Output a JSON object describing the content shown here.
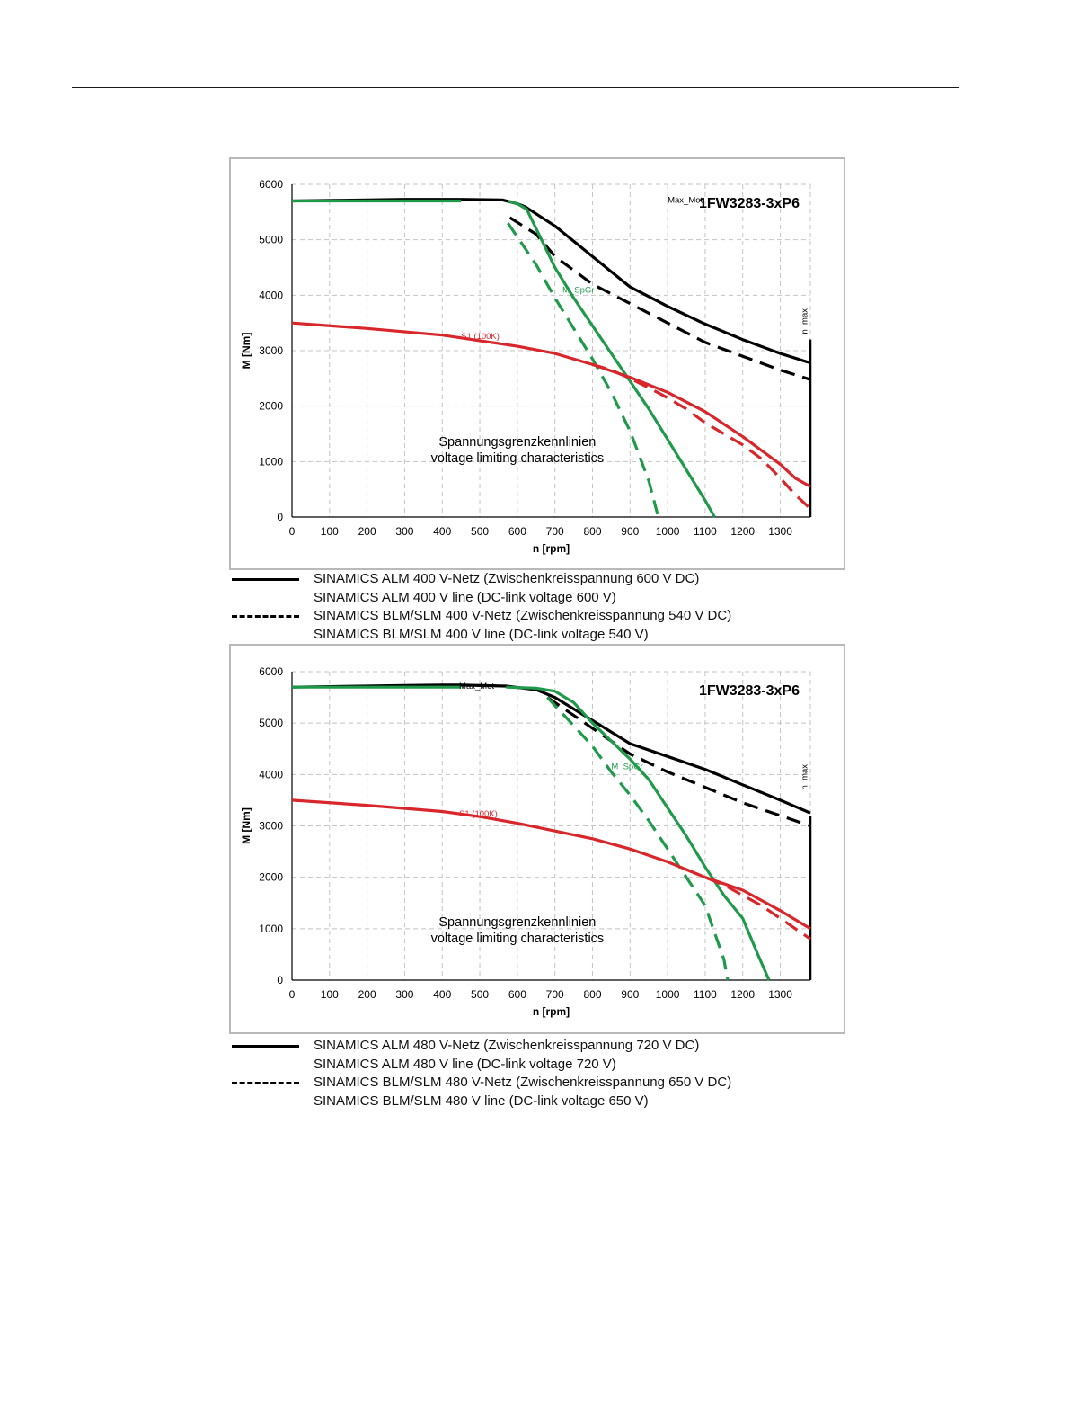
{
  "chart_data": [
    {
      "type": "line",
      "title": "1FW3283-3xP6",
      "xlabel": "n [rpm]",
      "ylabel": "M [Nm]",
      "xlim": [
        0,
        1380
      ],
      "ylim": [
        0,
        6000
      ],
      "xticks": [
        0,
        100,
        200,
        300,
        400,
        500,
        600,
        700,
        800,
        900,
        1000,
        1100,
        1200,
        1300
      ],
      "yticks": [
        0,
        1000,
        2000,
        3000,
        4000,
        5000,
        6000
      ],
      "grid": true,
      "labels": {
        "max_mot": "Max_Mot",
        "m_spgr": "M_SpGr",
        "s1": "S1 (100K)",
        "n_max": "n_max",
        "annotation_line1": "Spannungsgrenzkennlinien",
        "annotation_line2": "voltage limiting characteristics"
      },
      "colors": {
        "black": "#000000",
        "green": "#1f9a4a",
        "red": "#d8262b",
        "grid": "#c4c4c4"
      },
      "series": [
        {
          "id": "max_mot_alm",
          "color": "black",
          "dash": false,
          "x": [
            0,
            100,
            200,
            300,
            400,
            450,
            560,
            600,
            620,
            700,
            800,
            900,
            1000,
            1100,
            1200,
            1300,
            1380
          ],
          "y": [
            5700,
            5710,
            5720,
            5730,
            5730,
            5730,
            5720,
            5650,
            5600,
            5250,
            4700,
            4150,
            3800,
            3480,
            3200,
            2950,
            2780
          ]
        },
        {
          "id": "max_mot_blm",
          "color": "black",
          "dash": true,
          "x": [
            580,
            650,
            700,
            800,
            900,
            1000,
            1100,
            1200,
            1300,
            1380
          ],
          "y": [
            5400,
            5100,
            4700,
            4200,
            3850,
            3500,
            3150,
            2900,
            2650,
            2480
          ]
        },
        {
          "id": "m_spgr_plateau",
          "color": "green",
          "dash": false,
          "x": [
            0,
            100,
            200,
            300,
            400,
            450
          ],
          "y": [
            5700,
            5700,
            5700,
            5700,
            5700,
            5700
          ]
        },
        {
          "id": "m_spgr_alm",
          "color": "green",
          "dash": false,
          "x": [
            575,
            600,
            625,
            650,
            700,
            750,
            800,
            850,
            900,
            950,
            1000,
            1050,
            1100,
            1125
          ],
          "y": [
            5700,
            5650,
            5550,
            5200,
            4500,
            3950,
            3450,
            2950,
            2450,
            1950,
            1400,
            850,
            300,
            0
          ]
        },
        {
          "id": "m_spgr_blm",
          "color": "green",
          "dash": true,
          "x": [
            575,
            600,
            650,
            700,
            750,
            800,
            850,
            900,
            950,
            975
          ],
          "y": [
            5300,
            5050,
            4550,
            3950,
            3400,
            2850,
            2250,
            1550,
            650,
            0
          ]
        },
        {
          "id": "s1_alm",
          "color": "red",
          "dash": false,
          "x": [
            0,
            200,
            400,
            500,
            600,
            700,
            800,
            900,
            1000,
            1100,
            1200,
            1300,
            1340,
            1380
          ],
          "y": [
            3500,
            3400,
            3280,
            3180,
            3080,
            2950,
            2750,
            2520,
            2250,
            1900,
            1450,
            950,
            700,
            550
          ]
        },
        {
          "id": "s1_blm",
          "color": "red",
          "dash": true,
          "x": [
            800,
            850,
            900,
            950,
            1000,
            1050,
            1100,
            1150,
            1200,
            1250,
            1300,
            1340,
            1380
          ],
          "y": [
            2750,
            2650,
            2500,
            2330,
            2150,
            1950,
            1700,
            1500,
            1300,
            1050,
            700,
            400,
            150
          ]
        }
      ]
    },
    {
      "type": "line",
      "title": "1FW3283-3xP6",
      "xlabel": "n [rpm]",
      "ylabel": "M [Nm]",
      "xlim": [
        0,
        1380
      ],
      "ylim": [
        0,
        6000
      ],
      "xticks": [
        0,
        100,
        200,
        300,
        400,
        500,
        600,
        700,
        800,
        900,
        1000,
        1100,
        1200,
        1300
      ],
      "yticks": [
        0,
        1000,
        2000,
        3000,
        4000,
        5000,
        6000
      ],
      "grid": true,
      "labels": {
        "max_mot": "Max_Mot",
        "m_spgr": "M_SpGr",
        "s1": "S1 (100K)",
        "n_max": "n_max",
        "annotation_line1": "Spannungsgrenzkennlinien",
        "annotation_line2": "voltage limiting characteristics"
      },
      "colors": {
        "black": "#000000",
        "green": "#1f9a4a",
        "red": "#d8262b",
        "grid": "#c4c4c4"
      },
      "series": [
        {
          "id": "max_mot_alm",
          "color": "black",
          "dash": false,
          "x": [
            0,
            100,
            200,
            300,
            400,
            450,
            570,
            650,
            700,
            800,
            900,
            1000,
            1100,
            1200,
            1300,
            1380
          ],
          "y": [
            5700,
            5710,
            5720,
            5730,
            5740,
            5740,
            5720,
            5650,
            5500,
            5050,
            4600,
            4350,
            4100,
            3800,
            3500,
            3250
          ]
        },
        {
          "id": "max_mot_blm",
          "color": "black",
          "dash": true,
          "x": [
            680,
            750,
            800,
            900,
            1000,
            1100,
            1200,
            1300,
            1380
          ],
          "y": [
            5500,
            5150,
            4900,
            4400,
            4050,
            3750,
            3450,
            3200,
            3000
          ]
        },
        {
          "id": "m_spgr_plateau",
          "color": "green",
          "dash": false,
          "x": [
            0,
            100,
            200,
            300,
            400,
            450
          ],
          "y": [
            5700,
            5700,
            5700,
            5700,
            5700,
            5700
          ]
        },
        {
          "id": "m_spgr_alm",
          "color": "green",
          "dash": false,
          "x": [
            570,
            650,
            700,
            750,
            800,
            850,
            900,
            950,
            1000,
            1050,
            1100,
            1150,
            1200,
            1240,
            1270
          ],
          "y": [
            5700,
            5680,
            5620,
            5400,
            5000,
            4650,
            4300,
            3900,
            3350,
            2800,
            2200,
            1650,
            1200,
            500,
            0
          ]
        },
        {
          "id": "m_spgr_blm",
          "color": "green",
          "dash": true,
          "x": [
            680,
            750,
            800,
            850,
            900,
            950,
            1000,
            1050,
            1100,
            1150,
            1160
          ],
          "y": [
            5500,
            4950,
            4550,
            4050,
            3600,
            3100,
            2550,
            2000,
            1450,
            400,
            0
          ]
        },
        {
          "id": "s1_alm",
          "color": "red",
          "dash": false,
          "x": [
            0,
            200,
            400,
            500,
            600,
            700,
            800,
            900,
            1000,
            1100,
            1200,
            1300,
            1380
          ],
          "y": [
            3500,
            3400,
            3280,
            3180,
            3050,
            2900,
            2750,
            2550,
            2300,
            2000,
            1750,
            1350,
            1000
          ]
        },
        {
          "id": "s1_blm",
          "color": "red",
          "dash": true,
          "x": [
            1050,
            1100,
            1150,
            1200,
            1250,
            1300,
            1340,
            1380
          ],
          "y": [
            2150,
            2000,
            1850,
            1650,
            1450,
            1200,
            1000,
            800
          ]
        }
      ]
    }
  ],
  "legends": [
    [
      {
        "style": "solid",
        "text": "SINAMICS ALM  400 V-Netz (Zwischenkreisspannung 600 V DC)"
      },
      {
        "style": "none",
        "text": "SINAMICS ALM  400 V line (DC-link voltage 600 V)"
      },
      {
        "style": "dashed",
        "text": "SINAMICS BLM/SLM  400 V-Netz (Zwischenkreisspannung 540 V DC)"
      },
      {
        "style": "none",
        "text": "SINAMICS BLM/SLM  400 V line (DC-link voltage 540 V)"
      }
    ],
    [
      {
        "style": "solid",
        "text": "SINAMICS ALM  480 V-Netz (Zwischenkreisspannung 720 V DC)"
      },
      {
        "style": "none",
        "text": "SINAMICS ALM  480 V line (DC-link voltage 720 V)"
      },
      {
        "style": "dashed",
        "text": "SINAMICS BLM/SLM  480 V-Netz (Zwischenkreisspannung 650 V DC)"
      },
      {
        "style": "none",
        "text": "SINAMICS BLM/SLM  480 V line (DC-link voltage 650 V)"
      }
    ]
  ]
}
